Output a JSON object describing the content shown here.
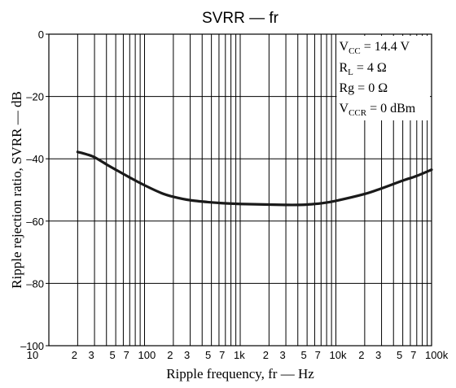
{
  "chart_data": {
    "type": "line",
    "title": "SVRR — fr",
    "xlabel": "Ripple frequency, fr — Hz",
    "ylabel": "Ripple rejection ratio, SVRR — dB",
    "x_scale": "log",
    "xlim": [
      10,
      100000
    ],
    "ylim": [
      -100,
      0
    ],
    "grid": true,
    "x_ticks": [
      {
        "value": 10,
        "label": "10"
      },
      {
        "value": 20,
        "label": "2"
      },
      {
        "value": 30,
        "label": "3"
      },
      {
        "value": 50,
        "label": "5"
      },
      {
        "value": 70,
        "label": "7"
      },
      {
        "value": 100,
        "label": "100"
      },
      {
        "value": 200,
        "label": "2"
      },
      {
        "value": 300,
        "label": "3"
      },
      {
        "value": 500,
        "label": "5"
      },
      {
        "value": 700,
        "label": "7"
      },
      {
        "value": 1000,
        "label": "1k"
      },
      {
        "value": 2000,
        "label": "2"
      },
      {
        "value": 3000,
        "label": "3"
      },
      {
        "value": 5000,
        "label": "5"
      },
      {
        "value": 7000,
        "label": "7"
      },
      {
        "value": 10000,
        "label": "10k"
      },
      {
        "value": 20000,
        "label": "2"
      },
      {
        "value": 30000,
        "label": "3"
      },
      {
        "value": 50000,
        "label": "5"
      },
      {
        "value": 70000,
        "label": "7"
      },
      {
        "value": 100000,
        "label": "100k"
      }
    ],
    "x_grid_values": [
      20,
      30,
      40,
      50,
      60,
      70,
      80,
      90,
      100,
      200,
      300,
      400,
      500,
      600,
      700,
      800,
      900,
      1000,
      2000,
      3000,
      4000,
      5000,
      6000,
      7000,
      8000,
      9000,
      10000,
      20000,
      30000,
      40000,
      50000,
      60000,
      70000,
      80000,
      90000
    ],
    "y_ticks": [
      {
        "value": 0,
        "label": "0"
      },
      {
        "value": -20,
        "label": "–20"
      },
      {
        "value": -40,
        "label": "–40"
      },
      {
        "value": -60,
        "label": "–60"
      },
      {
        "value": -80,
        "label": "–80"
      },
      {
        "value": -100,
        "label": "–100"
      }
    ],
    "series": [
      {
        "x": [
          20,
          25,
          30,
          40,
          50,
          70,
          100,
          150,
          200,
          300,
          500,
          700,
          1000,
          2000,
          3000,
          4000,
          5000,
          7000,
          10000,
          20000,
          30000,
          50000,
          70000,
          100000
        ],
        "y": [
          -37.8,
          -38.6,
          -39.5,
          -41.8,
          -43.5,
          -46.0,
          -48.5,
          -51.0,
          -52.2,
          -53.3,
          -54.0,
          -54.3,
          -54.5,
          -54.7,
          -54.8,
          -54.8,
          -54.7,
          -54.3,
          -53.5,
          -51.3,
          -49.5,
          -47.0,
          -45.5,
          -43.5
        ]
      }
    ],
    "annotations": [
      {
        "main": "V",
        "sub": "CC",
        "rest": " = 14.4 V"
      },
      {
        "main": "R",
        "sub": "L",
        "rest": " = 4 Ω"
      },
      {
        "main": "Rg = 0 Ω",
        "sub": "",
        "rest": ""
      },
      {
        "main": "V",
        "sub": "CCR",
        "rest": " = 0 dBm"
      }
    ],
    "colors": {
      "line": "#1a1a1a",
      "grid": "#000000"
    }
  }
}
